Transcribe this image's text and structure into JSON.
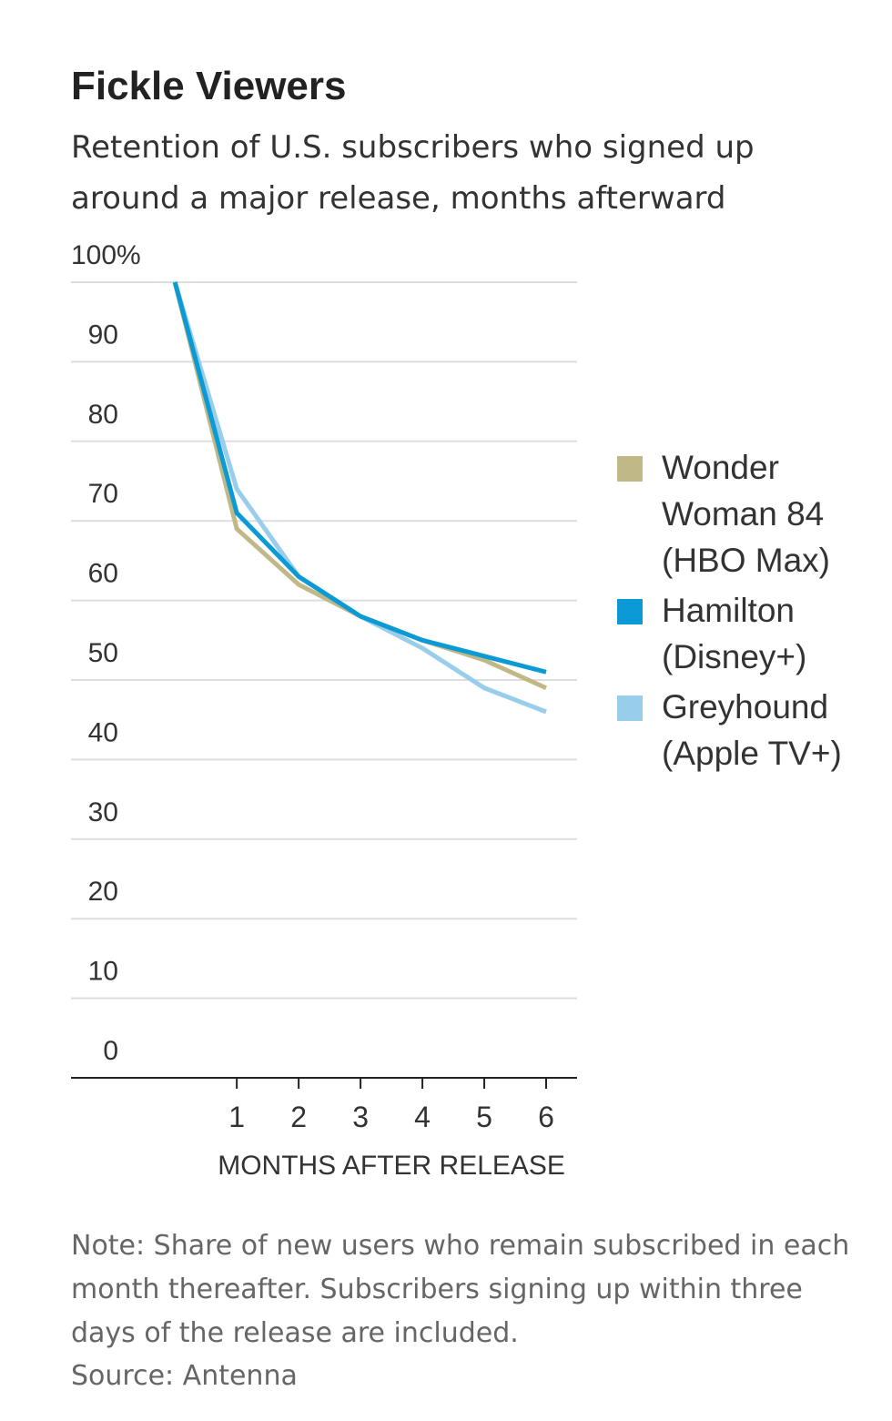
{
  "chart_data": {
    "type": "line",
    "title": "Fickle Viewers",
    "subtitle": "Retention of U.S. subscribers who signed up around a major release, months afterward",
    "x_label": "MONTHS AFTER RELEASE",
    "x": [
      0,
      1,
      2,
      3,
      4,
      5,
      6
    ],
    "xlim": [
      -1.68,
      6.5
    ],
    "xticks": [
      1,
      2,
      3,
      4,
      5,
      6
    ],
    "ylim": [
      0,
      100
    ],
    "yticks": [
      0,
      10,
      20,
      30,
      40,
      50,
      60,
      70,
      80,
      90,
      {
        "value": 100,
        "label": "100%"
      }
    ],
    "grid": true,
    "legend": "right",
    "series": [
      {
        "name": "Wonder Woman 84 (HBO Max)",
        "color": "#c0b987",
        "values": [
          100,
          69,
          62,
          58,
          55,
          52.5,
          49
        ]
      },
      {
        "name": "Hamilton (Disney+)",
        "color": "#0b9ad6",
        "values": [
          100,
          71,
          63,
          58,
          55,
          53,
          51
        ]
      },
      {
        "name": "Greyhound (Apple TV+)",
        "color": "#98cdeb",
        "values": [
          100,
          74,
          63,
          58,
          54,
          49,
          46
        ]
      }
    ],
    "note": "Note: Share of new users who remain subscribed in each month thereafter. Subscribers signing up within three days of the release are included.",
    "source": "Source: Antenna"
  }
}
